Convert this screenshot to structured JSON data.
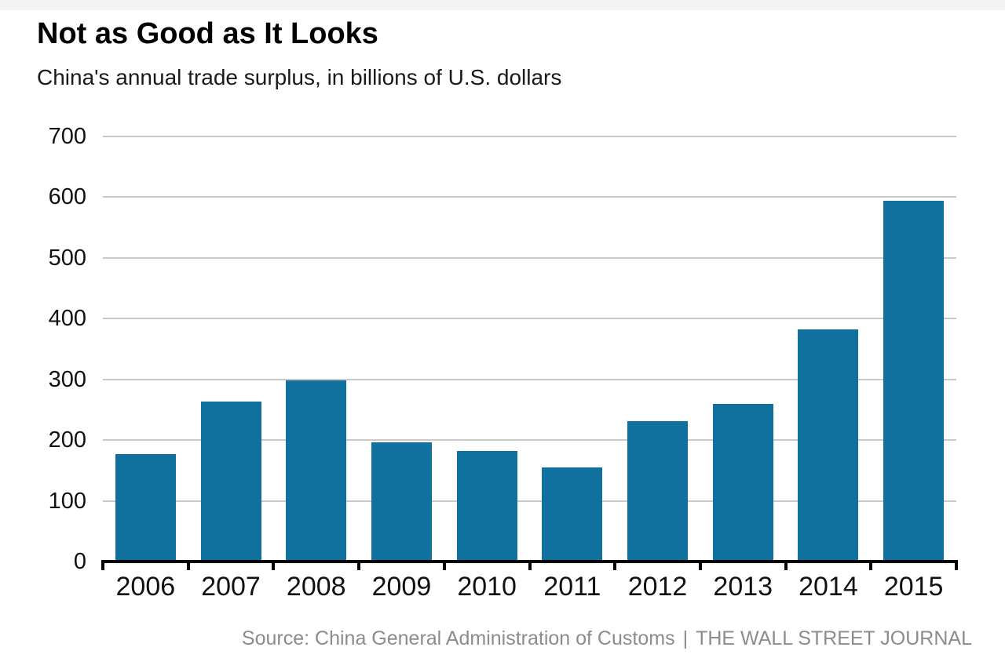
{
  "header": {
    "title": "Not as Good as It Looks",
    "subtitle": "China's annual trade surplus, in billions of U.S. dollars"
  },
  "footer": {
    "source": "Source: China General Administration of Customs",
    "divider": "|",
    "attribution": "THE WALL STREET JOURNAL"
  },
  "chart_data": {
    "type": "bar",
    "title": "Not as Good as It Looks",
    "subtitle": "China's annual trade surplus, in billions of U.S. dollars",
    "categories": [
      "2006",
      "2007",
      "2008",
      "2009",
      "2010",
      "2011",
      "2012",
      "2013",
      "2014",
      "2015"
    ],
    "values": [
      177.5,
      264,
      298,
      196,
      182,
      155,
      231,
      259,
      382,
      594
    ],
    "xlabel": "",
    "ylabel": "billions of U.S. dollars",
    "ylim": [
      0,
      700
    ],
    "yticks": [
      0,
      100,
      200,
      300,
      400,
      500,
      600,
      700
    ],
    "grid": "horizontal",
    "legend": "none",
    "bar_color": "#11719e",
    "gridline_color": "#c9c9c9",
    "axis_color": "#000000",
    "source": "Source: China General Administration of Customs",
    "attribution": "THE WALL STREET JOURNAL"
  }
}
